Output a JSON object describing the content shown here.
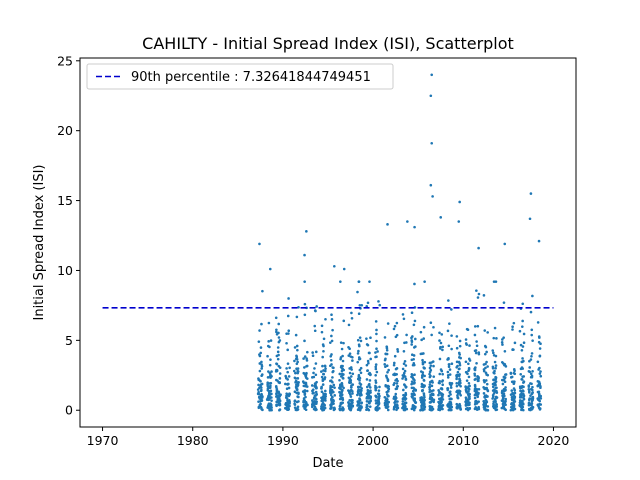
{
  "chart_data": {
    "type": "scatter",
    "title": "CAHILTY - Initial Spread Index (ISI), Scatterplot",
    "xlabel": "Date",
    "ylabel": "Initial Spread Index (ISI)",
    "xlim": [
      1967.5,
      2022.5
    ],
    "ylim": [
      -1.2,
      25.2
    ],
    "xticks": [
      1970,
      1980,
      1990,
      2000,
      2010,
      2020
    ],
    "yticks": [
      0,
      5,
      10,
      15,
      20,
      25
    ],
    "grid": false,
    "legend_position": "top-left",
    "point_color": "#1f77b4",
    "data_start": 1987.2,
    "data_end": 2018.6,
    "seasons_per_year": 1,
    "reference_line": {
      "label": "90th percentile : 7.32641844749451",
      "value": 7.32641844749451,
      "x_range": [
        1970,
        2020
      ],
      "color": "#0000cd",
      "style": "dashed"
    },
    "notable_points": [
      {
        "x": 1987.4,
        "y": 11.9
      },
      {
        "x": 1988.6,
        "y": 10.1
      },
      {
        "x": 1992.4,
        "y": 11.1
      },
      {
        "x": 1992.6,
        "y": 12.8
      },
      {
        "x": 1995.7,
        "y": 10.3
      },
      {
        "x": 1996.8,
        "y": 10.1
      },
      {
        "x": 2001.6,
        "y": 13.3
      },
      {
        "x": 2003.8,
        "y": 13.5
      },
      {
        "x": 2004.6,
        "y": 13.1
      },
      {
        "x": 2006.5,
        "y": 24.0
      },
      {
        "x": 2006.4,
        "y": 22.5
      },
      {
        "x": 2006.5,
        "y": 19.1
      },
      {
        "x": 2006.4,
        "y": 16.1
      },
      {
        "x": 2006.6,
        "y": 15.3
      },
      {
        "x": 2007.5,
        "y": 13.8
      },
      {
        "x": 2009.6,
        "y": 14.9
      },
      {
        "x": 2009.5,
        "y": 13.5
      },
      {
        "x": 2011.7,
        "y": 11.6
      },
      {
        "x": 2014.6,
        "y": 11.9
      },
      {
        "x": 2017.5,
        "y": 15.5
      },
      {
        "x": 2017.4,
        "y": 13.7
      },
      {
        "x": 2018.4,
        "y": 12.1
      }
    ]
  }
}
